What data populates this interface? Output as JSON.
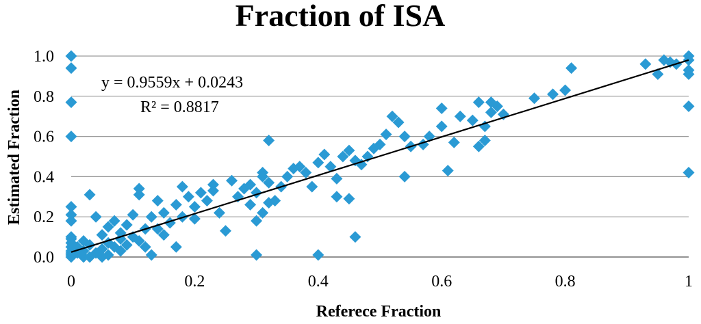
{
  "chart_data": {
    "type": "scatter",
    "title": "Fraction of ISA",
    "xlabel": "Referece Fraction",
    "ylabel": "Estimated Fraction",
    "xlim": [
      0,
      1
    ],
    "ylim": [
      0,
      1
    ],
    "x_ticks": [
      "0",
      "0.2",
      "0.4",
      "0.6",
      "0.8",
      "1"
    ],
    "y_ticks": [
      "0.0",
      "0.2",
      "0.4",
      "0.6",
      "0.8",
      "1.0"
    ],
    "grid": "horizontal",
    "legend": "none",
    "marker": "diamond",
    "marker_color": "#2a9ad4",
    "trendline": {
      "equation": "y = 0.9559x + 0.0243",
      "r_squared": "R² = 0.8817",
      "slope": 0.9559,
      "intercept": 0.0243,
      "color": "#000000"
    },
    "series": [
      {
        "x": [
          0,
          0,
          0,
          0,
          0,
          0,
          0,
          0,
          0,
          0,
          0,
          0,
          0,
          0,
          0,
          0.01,
          0.01,
          0.02,
          0.02,
          0.02,
          0.03,
          0.03,
          0.03,
          0.04,
          0.04,
          0.05,
          0.05,
          0.05,
          0.06,
          0.06,
          0.06,
          0.07,
          0.07,
          0.08,
          0.08,
          0.08,
          0.09,
          0.09,
          0.1,
          0.1,
          0.11,
          0.11,
          0.11,
          0.12,
          0.12,
          0.13,
          0.13,
          0.14,
          0.14,
          0.15,
          0.15,
          0.16,
          0.17,
          0.17,
          0.18,
          0.18,
          0.19,
          0.2,
          0.2,
          0.21,
          0.22,
          0.23,
          0.24,
          0.25,
          0.26,
          0.27,
          0.28,
          0.29,
          0.3,
          0.3,
          0.31,
          0.31,
          0.32,
          0.32,
          0.33,
          0.34,
          0.35,
          0.36,
          0.37,
          0.38,
          0.39,
          0.3,
          0.31,
          0.32,
          0.23,
          0.29,
          0.4,
          0.41,
          0.42,
          0.43,
          0.44,
          0.45,
          0.46,
          0.47,
          0.48,
          0.49,
          0.5,
          0.51,
          0.52,
          0.53,
          0.54,
          0.55,
          0.57,
          0.58,
          0.43,
          0.45,
          0.46,
          0.4,
          0.54,
          0.6,
          0.6,
          0.61,
          0.62,
          0.63,
          0.65,
          0.66,
          0.67,
          0.68,
          0.68,
          0.69,
          0.7,
          0.67,
          0.66,
          0.75,
          0.78,
          0.8,
          0.81,
          0.93,
          0.95,
          0.96,
          0.97,
          0.98,
          1,
          1,
          1,
          1,
          1,
          1
        ],
        "y": [
          1.0,
          0.94,
          0.77,
          0.6,
          0.25,
          0.21,
          0.18,
          0.1,
          0.07,
          0.05,
          0.03,
          0.02,
          0.01,
          0,
          0.09,
          0.05,
          0.02,
          0.08,
          0.03,
          0,
          0.06,
          0.31,
          0,
          0.2,
          0.02,
          0.11,
          0.04,
          0,
          0.15,
          0.07,
          0.01,
          0.18,
          0.05,
          0.12,
          0.03,
          0.09,
          0.16,
          0.06,
          0.21,
          0.1,
          0.34,
          0.31,
          0.08,
          0.14,
          0.05,
          0.2,
          0.01,
          0.28,
          0.14,
          0.22,
          0.11,
          0.17,
          0.05,
          0.26,
          0.35,
          0.2,
          0.3,
          0.25,
          0.19,
          0.32,
          0.28,
          0.33,
          0.22,
          0.13,
          0.38,
          0.3,
          0.34,
          0.36,
          0.32,
          0.01,
          0.42,
          0.4,
          0.37,
          0.58,
          0.28,
          0.35,
          0.4,
          0.44,
          0.45,
          0.42,
          0.35,
          0.18,
          0.22,
          0.27,
          0.36,
          0.26,
          0.47,
          0.51,
          0.45,
          0.39,
          0.5,
          0.53,
          0.48,
          0.46,
          0.5,
          0.54,
          0.56,
          0.61,
          0.7,
          0.67,
          0.6,
          0.55,
          0.56,
          0.6,
          0.3,
          0.29,
          0.1,
          0.01,
          0.4,
          0.74,
          0.65,
          0.43,
          0.57,
          0.7,
          0.68,
          0.55,
          0.58,
          0.72,
          0.77,
          0.75,
          0.71,
          0.65,
          0.77,
          0.79,
          0.81,
          0.83,
          0.94,
          0.96,
          0.91,
          0.98,
          0.97,
          0.96,
          1.0,
          0.98,
          0.91,
          0.93,
          0.75,
          0.42
        ]
      }
    ]
  }
}
